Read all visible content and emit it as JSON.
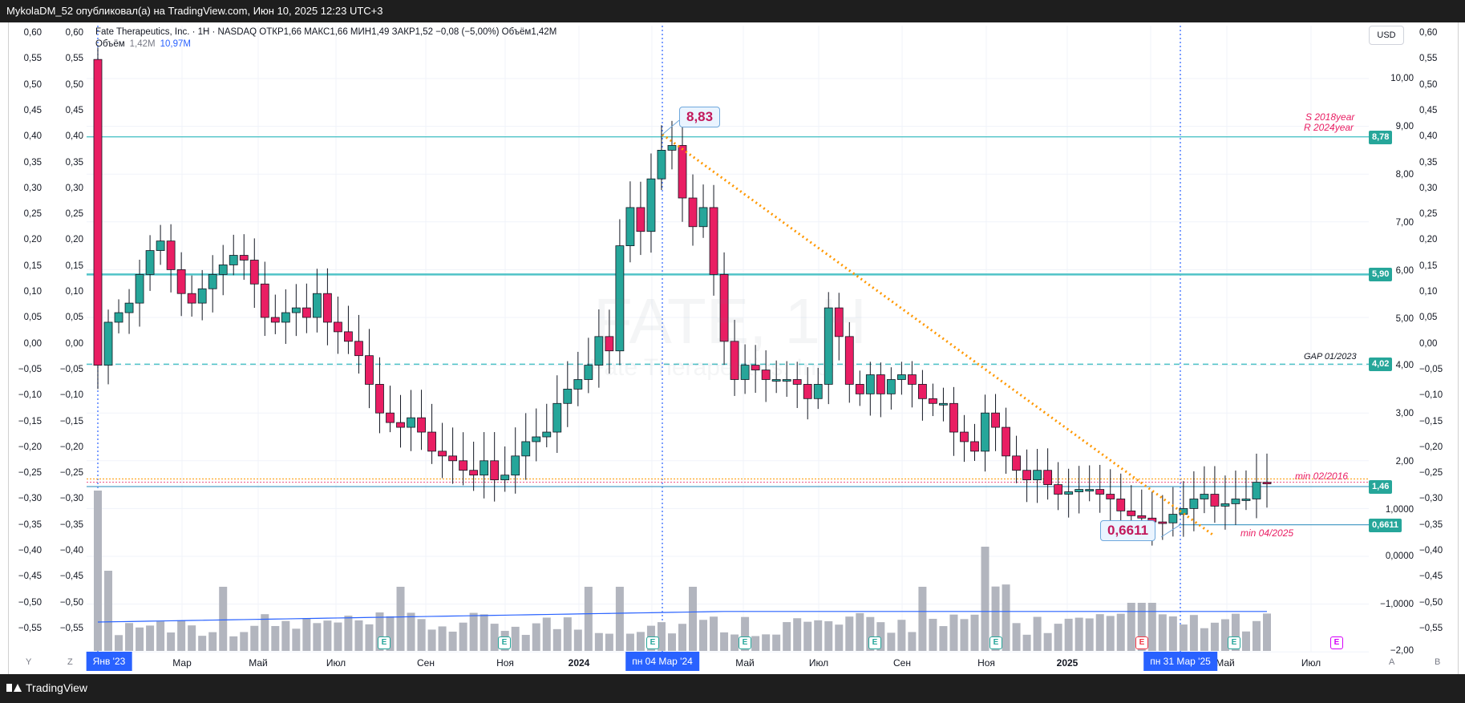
{
  "header": {
    "title": "MykolaDM_52 опубликовал(а) на TradingView.com, Июн 10, 2025 12:23 UTC+3"
  },
  "footer": {
    "brand": "TradingView"
  },
  "legend": {
    "line1": "Fate Therapeutics, Inc. · 1Н · NASDAQ  ОТКР1,66  МАКС1,66  МИН1,49  ЗАКР1,52  −0,08 (−5,00%)  Объём1,42M",
    "vol_label": "Объём",
    "vol_a": "1,42M",
    "vol_b": "10,97M"
  },
  "currency": "USD",
  "watermark": {
    "ticker": "FATE, 1Н",
    "name": "Fate Therapeutics, Inc."
  },
  "price_tags": [
    {
      "label": "8,78",
      "value": 8.78,
      "color": "#26a69a"
    },
    {
      "label": "5,90",
      "value": 5.9,
      "color": "#26a69a"
    },
    {
      "label": "4,02",
      "value": 4.02,
      "color": "#26a69a"
    },
    {
      "label": "1,46",
      "value": 1.46,
      "color": "#26a69a"
    },
    {
      "label": "0,6611",
      "value": 0.6611,
      "color": "#26a69a"
    }
  ],
  "callouts": {
    "high": "8,83",
    "low": "0,6611"
  },
  "annotations": {
    "s2018": "S 2018year",
    "r2024": "R 2024year",
    "gap": "GAP 01/2023",
    "min2016": "min 02/2016",
    "min2025": "min 04/2025"
  },
  "right_scale": [
    "10,00",
    "9,00",
    "8,00",
    "7,00",
    "6,00",
    "5,00",
    "4,00",
    "3,00",
    "2,00",
    "1,0000",
    "0,0000",
    "−1,0000",
    "−2,00"
  ],
  "secondary_scale": [
    "0,60",
    "0,55",
    "0,50",
    "0,45",
    "0,40",
    "0,35",
    "0,30",
    "0,25",
    "0,20",
    "0,15",
    "0,10",
    "0,05",
    "0,00",
    "−0,05",
    "−0,10",
    "−0,15",
    "−0,20",
    "−0,25",
    "−0,30",
    "−0,35",
    "−0,40",
    "−0,45",
    "−0,50",
    "−0,55"
  ],
  "x_axis": {
    "labels": [
      "Мар",
      "Май",
      "Июл",
      "Сен",
      "Ноя",
      "2024",
      "Май",
      "Июл",
      "Сен",
      "Ноя",
      "2025",
      "Май",
      "Июл"
    ],
    "highlights": [
      "Янв '23",
      "пн 04 Мар '24",
      "пн 31 Мар '25"
    ],
    "corner_left": [
      "Y",
      "Z"
    ],
    "corner_right": [
      "A",
      "B"
    ]
  },
  "earnings_marker": "E",
  "colors": {
    "up": "#26a69a",
    "down": "#e91e63",
    "volume": "#b2b5be",
    "trend": "#ff9800",
    "level": "#4fc3c7",
    "volume_ma": "#2962ff"
  },
  "chart_data": {
    "type": "candlestick",
    "title": "Fate Therapeutics, Inc. · 1Н · NASDAQ",
    "y_range": [
      -2.0,
      10.4
    ],
    "levels": [
      8.78,
      5.9,
      4.02,
      1.46,
      0.6611
    ],
    "trendline": {
      "from": 8.83,
      "to": 0.42
    },
    "weekly_closes": [
      4.0,
      4.9,
      5.1,
      5.3,
      5.9,
      6.4,
      6.6,
      6.0,
      5.5,
      5.3,
      5.6,
      5.9,
      6.1,
      6.3,
      6.2,
      5.7,
      5.0,
      4.9,
      5.1,
      5.2,
      5.0,
      5.5,
      4.9,
      4.7,
      4.5,
      4.2,
      3.6,
      3.0,
      2.8,
      2.7,
      2.9,
      2.6,
      2.2,
      2.1,
      2.0,
      1.8,
      1.7,
      2.0,
      1.6,
      1.7,
      2.1,
      2.4,
      2.5,
      2.6,
      3.2,
      3.5,
      3.7,
      4.0,
      4.6,
      4.3,
      6.5,
      7.3,
      6.8,
      7.9,
      8.5,
      8.6,
      7.5,
      6.9,
      7.3,
      5.9,
      4.5,
      3.7,
      4.0,
      3.9,
      3.7,
      3.7,
      3.7,
      3.6,
      3.3,
      3.6,
      5.2,
      4.6,
      3.6,
      3.4,
      3.8,
      3.4,
      3.7,
      3.8,
      3.6,
      3.3,
      3.2,
      3.2,
      2.6,
      2.4,
      2.2,
      3.0,
      2.7,
      2.1,
      1.8,
      1.6,
      1.8,
      1.5,
      1.3,
      1.35,
      1.4,
      1.4,
      1.3,
      1.2,
      0.95,
      0.85,
      0.8,
      0.72,
      0.7,
      0.88,
      1.0,
      1.2,
      1.3,
      1.05,
      1.1,
      1.2,
      1.2,
      1.55,
      1.52
    ]
  }
}
